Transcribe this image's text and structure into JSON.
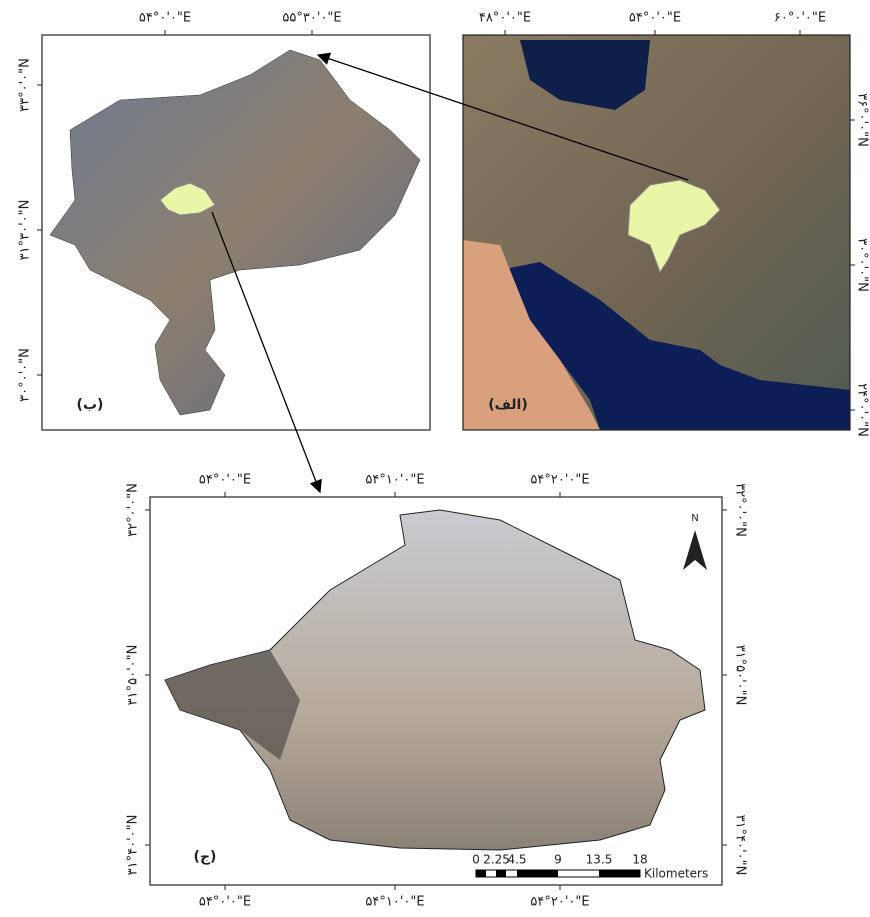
{
  "panels": [
    {
      "label": "(ب)",
      "top_labels": [
        "۵۴°۰'۰\"E",
        "۵۵°۳۰'۰\"E"
      ],
      "left_labels": [
        "۳۳°۰'۰\"N",
        "۳۱°۳۰'۰\"N",
        "۳۰°۰'۰\"N"
      ]
    },
    {
      "label": "(الف)",
      "top_labels": [
        "۴۸°۰'۰\"E",
        "۵۴°۰'۰\"E",
        "۶۰°۰'۰\"E"
      ],
      "right_labels": [
        "۳۶°۰'۰\"N",
        "۳۰°۰'۰\"N",
        "۲۴°۰'۰\"N"
      ]
    },
    {
      "label": "(ج)",
      "top_labels": [
        "۵۴°۰'۰\"E",
        "۵۴°۱۰'۰\"E",
        "۵۴°۲۰'۰\"E"
      ],
      "bottom_labels": [
        "۵۴°۰'۰\"E",
        "۵۴°۱۰'۰\"E",
        "۵۴°۲۰'۰\"E"
      ],
      "left_labels": [
        "۳۲°۰'۰\"N",
        "۳۱°۵۰'۰\"N",
        "۳۱°۴۰'۰\"N"
      ],
      "right_labels": [
        "۳۲°۰'۰\"N",
        "۳۱°۵۰'۰\"N",
        "۳۱°۴۰'۰\"N"
      ],
      "north": "N",
      "scale_bar": {
        "ticks": [
          0,
          2.25,
          4.5,
          9,
          13.5,
          18
        ],
        "unit": "Kilometers"
      }
    }
  ]
}
